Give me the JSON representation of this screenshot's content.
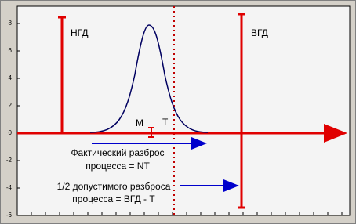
{
  "y_axis": {
    "ticks": [
      8,
      6,
      4,
      2,
      0,
      -2,
      -4,
      -6
    ]
  },
  "labels": {
    "lower_limit": "НГД",
    "upper_limit": "ВГД",
    "mean": "M",
    "target": "T",
    "actual_spread": [
      "Фактический разброс",
      "процесса = NT"
    ],
    "allowed_spread": [
      "1/2 допустимого разброса",
      "процесса = ВГД - T"
    ]
  }
}
